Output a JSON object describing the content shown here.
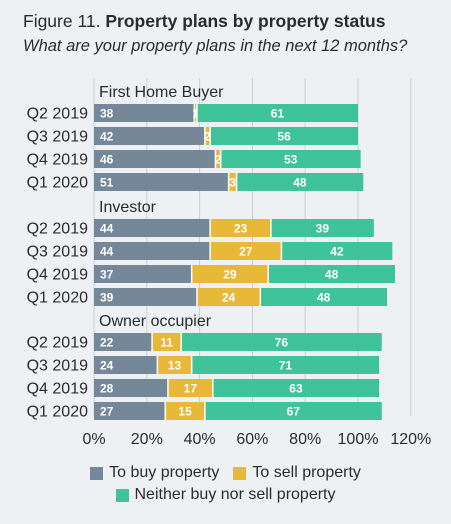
{
  "figure_label": "Figure 11.",
  "title": "Property plans by property status",
  "subtitle": "What are your property plans in the next 12 months?",
  "colors": {
    "buy": "#74889a",
    "sell": "#e8b839",
    "neither": "#3fc399",
    "grid": "#c9cfd4",
    "separator": "#ffffff"
  },
  "chart_data": {
    "type": "bar",
    "orientation": "horizontal",
    "stacked": true,
    "xlim": [
      0,
      120
    ],
    "x_ticks": [
      "0%",
      "20%",
      "40%",
      "60%",
      "80%",
      "100%",
      "120%"
    ],
    "x_tick_values": [
      0,
      20,
      40,
      60,
      80,
      100,
      120
    ],
    "legend_position": "bottom",
    "series_names": [
      "To buy property",
      "To sell property",
      "Neither buy nor sell property"
    ],
    "groups": [
      {
        "name": "First Home Buyer",
        "rows": [
          {
            "label": "Q2 2019",
            "buy": 38,
            "sell": 1,
            "neither": 61
          },
          {
            "label": "Q3 2019",
            "buy": 42,
            "sell": 2,
            "neither": 56
          },
          {
            "label": "Q4 2019",
            "buy": 46,
            "sell": 2,
            "neither": 53
          },
          {
            "label": "Q1 2020",
            "buy": 51,
            "sell": 3,
            "neither": 48
          }
        ]
      },
      {
        "name": "Investor",
        "rows": [
          {
            "label": "Q2 2019",
            "buy": 44,
            "sell": 23,
            "neither": 39
          },
          {
            "label": "Q3 2019",
            "buy": 44,
            "sell": 27,
            "neither": 42
          },
          {
            "label": "Q4 2019",
            "buy": 37,
            "sell": 29,
            "neither": 48
          },
          {
            "label": "Q1 2020",
            "buy": 39,
            "sell": 24,
            "neither": 48
          }
        ]
      },
      {
        "name": "Owner occupier",
        "rows": [
          {
            "label": "Q2 2019",
            "buy": 22,
            "sell": 11,
            "neither": 76
          },
          {
            "label": "Q3 2019",
            "buy": 24,
            "sell": 13,
            "neither": 71
          },
          {
            "label": "Q4 2019",
            "buy": 28,
            "sell": 17,
            "neither": 63
          },
          {
            "label": "Q1 2020",
            "buy": 27,
            "sell": 15,
            "neither": 67
          }
        ]
      }
    ]
  },
  "legend": {
    "buy_label": "To buy property",
    "sell_label": "To sell property",
    "neither_label": "Neither buy nor sell property"
  }
}
